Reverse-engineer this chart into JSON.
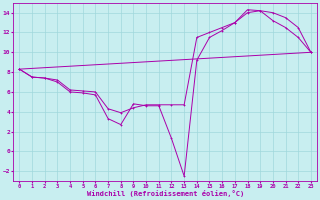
{
  "xlabel": "Windchill (Refroidissement éolien,°C)",
  "bg_color": "#c8eef0",
  "line_color": "#aa00aa",
  "grid_color": "#a0d8dc",
  "ylim": [
    -3,
    15
  ],
  "xlim": [
    -0.5,
    23.5
  ],
  "yticks": [
    -2,
    0,
    2,
    4,
    6,
    8,
    10,
    12,
    14
  ],
  "xticks": [
    0,
    1,
    2,
    3,
    4,
    5,
    6,
    7,
    8,
    9,
    10,
    11,
    12,
    13,
    14,
    15,
    16,
    17,
    18,
    19,
    20,
    21,
    22,
    23
  ],
  "line1_x": [
    0,
    1,
    2,
    3,
    4,
    5,
    6,
    7,
    8,
    9,
    10,
    11,
    12,
    13,
    14,
    15,
    16,
    17,
    18,
    19,
    20,
    21,
    22,
    23
  ],
  "line1_y": [
    8.3,
    7.5,
    7.4,
    7.0,
    6.0,
    5.9,
    5.7,
    3.3,
    2.7,
    4.8,
    4.6,
    4.6,
    1.3,
    -2.5,
    9.2,
    11.5,
    12.2,
    13.0,
    14.3,
    14.2,
    13.2,
    12.5,
    11.5,
    10.0
  ],
  "line2_x": [
    0,
    1,
    2,
    3,
    4,
    5,
    6,
    7,
    8,
    9,
    10,
    11,
    12,
    13,
    14,
    15,
    16,
    17,
    18,
    19,
    20,
    21,
    22,
    23
  ],
  "line2_y": [
    8.3,
    7.5,
    7.4,
    7.2,
    6.2,
    6.1,
    6.0,
    4.3,
    3.9,
    4.4,
    4.7,
    4.7,
    4.7,
    4.7,
    11.5,
    12.0,
    12.5,
    13.0,
    14.0,
    14.2,
    14.0,
    13.5,
    12.5,
    10.0
  ],
  "line3_x": [
    0,
    23
  ],
  "line3_y": [
    8.3,
    10.0
  ]
}
